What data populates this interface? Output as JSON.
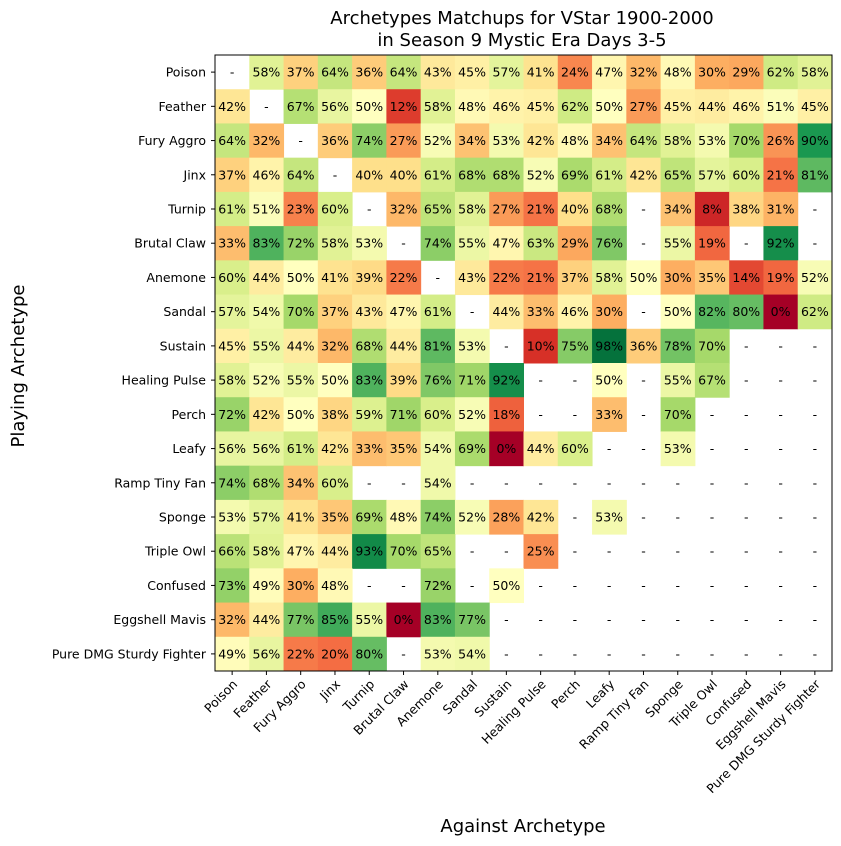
{
  "chart_data": {
    "type": "heatmap",
    "title_line1": "Archetypes Matchups for VStar 1900-2000",
    "title_line2": "in Season 9 Mystic Era Days 3-5",
    "xlabel": "Against Archetype",
    "ylabel": "Playing Archetype",
    "row_labels": [
      "Poison",
      "Feather",
      "Fury Aggro",
      "Jinx",
      "Turnip",
      "Brutal Claw",
      "Anemone",
      "Sandal",
      "Sustain",
      "Healing Pulse",
      "Perch",
      "Leafy",
      "Ramp Tiny Fan",
      "Sponge",
      "Triple Owl",
      "Confused",
      "Eggshell Mavis",
      "Pure DMG Sturdy Fighter"
    ],
    "col_labels": [
      "Poison",
      "Feather",
      "Fury Aggro",
      "Jinx",
      "Turnip",
      "Brutal Claw",
      "Anemone",
      "Sandal",
      "Sustain",
      "Healing Pulse",
      "Perch",
      "Leafy",
      "Ramp Tiny Fan",
      "Sponge",
      "Triple Owl",
      "Confused",
      "Eggshell Mavis",
      "Pure DMG Sturdy Fighter"
    ],
    "colormap": "RdYlGn",
    "vmin": 0,
    "vmax": 100,
    "missing_label": "-",
    "values": [
      [
        null,
        58,
        37,
        64,
        36,
        64,
        43,
        45,
        57,
        41,
        24,
        47,
        32,
        48,
        30,
        29,
        62,
        58
      ],
      [
        42,
        null,
        67,
        56,
        50,
        12,
        58,
        48,
        46,
        45,
        62,
        50,
        27,
        45,
        44,
        46,
        51,
        45
      ],
      [
        64,
        32,
        null,
        36,
        74,
        27,
        52,
        34,
        53,
        42,
        48,
        34,
        64,
        58,
        53,
        70,
        26,
        90
      ],
      [
        37,
        46,
        64,
        null,
        40,
        40,
        61,
        68,
        68,
        52,
        69,
        61,
        42,
        65,
        57,
        60,
        21,
        81
      ],
      [
        61,
        51,
        23,
        60,
        null,
        32,
        65,
        58,
        27,
        21,
        40,
        68,
        null,
        34,
        8,
        38,
        31,
        null
      ],
      [
        33,
        83,
        72,
        58,
        53,
        null,
        74,
        55,
        47,
        63,
        29,
        76,
        null,
        55,
        19,
        null,
        92,
        null
      ],
      [
        60,
        44,
        50,
        41,
        39,
        22,
        null,
        43,
        22,
        21,
        37,
        58,
        50,
        30,
        35,
        14,
        19,
        52
      ],
      [
        57,
        54,
        70,
        37,
        43,
        47,
        61,
        null,
        44,
        33,
        46,
        30,
        null,
        50,
        82,
        80,
        0,
        62
      ],
      [
        45,
        55,
        44,
        32,
        68,
        44,
        81,
        53,
        null,
        10,
        75,
        98,
        36,
        78,
        70,
        null,
        null,
        null
      ],
      [
        58,
        52,
        55,
        50,
        83,
        39,
        76,
        71,
        92,
        null,
        null,
        50,
        null,
        55,
        67,
        null,
        null,
        null
      ],
      [
        72,
        42,
        50,
        38,
        59,
        71,
        60,
        52,
        18,
        null,
        null,
        33,
        null,
        70,
        null,
        null,
        null,
        null
      ],
      [
        56,
        56,
        61,
        42,
        33,
        35,
        54,
        69,
        0,
        44,
        60,
        null,
        null,
        53,
        null,
        null,
        null,
        null
      ],
      [
        74,
        68,
        34,
        60,
        null,
        null,
        54,
        null,
        null,
        null,
        null,
        null,
        null,
        null,
        null,
        null,
        null,
        null
      ],
      [
        53,
        57,
        41,
        35,
        69,
        48,
        74,
        52,
        28,
        42,
        null,
        53,
        null,
        null,
        null,
        null,
        null,
        null
      ],
      [
        66,
        58,
        47,
        44,
        93,
        70,
        65,
        null,
        null,
        25,
        null,
        null,
        null,
        null,
        null,
        null,
        null,
        null
      ],
      [
        73,
        49,
        30,
        48,
        null,
        null,
        72,
        null,
        50,
        null,
        null,
        null,
        null,
        null,
        null,
        null,
        null,
        null
      ],
      [
        32,
        44,
        77,
        85,
        55,
        0,
        83,
        77,
        null,
        null,
        null,
        null,
        null,
        null,
        null,
        null,
        null,
        null
      ],
      [
        49,
        56,
        22,
        20,
        80,
        null,
        53,
        54,
        null,
        null,
        null,
        null,
        null,
        null,
        null,
        null,
        null,
        null
      ]
    ]
  }
}
